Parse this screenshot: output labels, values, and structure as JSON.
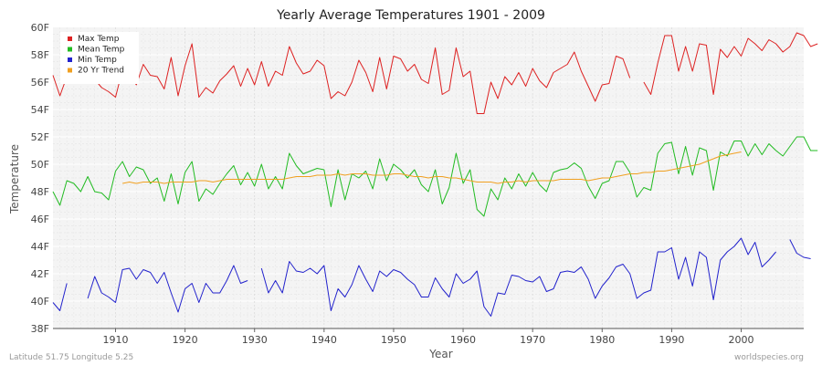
{
  "chart_data": {
    "type": "line",
    "title": "Yearly Average Temperatures 1901 - 2009",
    "xlabel": "Year",
    "ylabel": "Temperature",
    "xlim": [
      1901,
      2009
    ],
    "ylim": [
      38,
      60
    ],
    "x_ticks": [
      1910,
      1920,
      1930,
      1940,
      1950,
      1960,
      1970,
      1980,
      1990,
      2000
    ],
    "y_ticks": [
      38,
      40,
      42,
      44,
      46,
      48,
      50,
      52,
      54,
      56,
      58,
      60
    ],
    "y_tick_labels": [
      "38F",
      "40F",
      "42F",
      "44F",
      "46F",
      "48F",
      "50F",
      "52F",
      "54F",
      "56F",
      "58F",
      "60F"
    ],
    "grid": true,
    "legend_position": "top-left",
    "x_start": 1901,
    "series": [
      {
        "name": "Max Temp",
        "color": "#dd2222",
        "values": [
          56.5,
          55.0,
          56.4,
          56.0,
          null,
          55.9,
          56.2,
          55.6,
          55.3,
          54.9,
          56.9,
          56.5,
          55.8,
          57.3,
          56.5,
          56.4,
          55.5,
          57.8,
          55.0,
          57.2,
          58.8,
          54.9,
          55.6,
          55.2,
          56.1,
          56.6,
          57.2,
          55.7,
          57.0,
          55.8,
          57.5,
          55.7,
          56.8,
          56.5,
          58.6,
          57.4,
          56.6,
          56.8,
          57.6,
          57.2,
          54.8,
          55.3,
          55.0,
          56.0,
          57.6,
          56.7,
          55.3,
          57.8,
          55.5,
          57.9,
          57.7,
          56.8,
          57.3,
          56.2,
          55.9,
          58.5,
          55.1,
          55.4,
          58.5,
          56.4,
          56.8,
          53.7,
          53.7,
          56.0,
          54.8,
          56.4,
          55.8,
          56.7,
          55.7,
          57.0,
          56.1,
          55.6,
          56.7,
          57.0,
          57.3,
          58.2,
          56.8,
          55.7,
          54.6,
          55.8,
          55.9,
          57.9,
          57.7,
          56.3,
          null,
          56.0,
          55.1,
          57.4,
          59.4,
          59.4,
          56.8,
          58.6,
          56.8,
          58.8,
          58.7,
          55.1,
          58.4,
          57.8,
          58.6,
          57.9,
          59.2,
          58.8,
          58.3,
          59.1,
          58.8,
          58.2,
          58.6,
          59.6,
          59.4,
          58.6,
          58.8
        ]
      },
      {
        "name": "Mean Temp",
        "color": "#22bb22",
        "values": [
          48.0,
          47.0,
          48.8,
          48.6,
          48.0,
          49.1,
          48.0,
          47.9,
          47.4,
          49.5,
          50.2,
          49.1,
          49.8,
          49.6,
          48.6,
          49.0,
          47.3,
          49.3,
          47.1,
          49.4,
          50.2,
          47.3,
          48.2,
          47.8,
          48.6,
          49.3,
          49.9,
          48.5,
          49.4,
          48.4,
          50.0,
          48.2,
          49.1,
          48.2,
          50.8,
          49.9,
          49.3,
          49.5,
          49.7,
          49.6,
          46.9,
          49.6,
          47.4,
          49.3,
          49.0,
          49.5,
          48.2,
          50.4,
          48.8,
          50.0,
          49.6,
          49.0,
          49.6,
          48.5,
          48.0,
          49.6,
          47.1,
          48.3,
          50.8,
          48.6,
          49.6,
          46.7,
          46.2,
          48.2,
          47.4,
          49.0,
          48.2,
          49.3,
          48.4,
          49.4,
          48.5,
          48.0,
          49.4,
          49.6,
          49.7,
          50.1,
          49.7,
          48.4,
          47.5,
          48.6,
          48.8,
          50.2,
          50.2,
          49.4,
          47.6,
          48.3,
          48.1,
          50.8,
          51.5,
          51.6,
          49.3,
          51.3,
          49.2,
          51.2,
          51.0,
          48.1,
          50.9,
          50.6,
          51.7,
          51.7,
          50.6,
          51.5,
          50.7,
          51.5,
          51.0,
          50.6,
          51.3,
          52.0,
          52.0,
          51.0,
          51.0
        ]
      },
      {
        "name": "Min Temp",
        "color": "#2222cc",
        "values": [
          39.9,
          39.3,
          41.3,
          null,
          null,
          40.2,
          41.8,
          40.6,
          40.3,
          39.9,
          42.3,
          42.4,
          41.6,
          42.3,
          42.1,
          41.3,
          42.1,
          40.6,
          39.2,
          40.9,
          41.3,
          39.9,
          41.3,
          40.6,
          40.6,
          41.5,
          42.6,
          41.3,
          41.5,
          null,
          42.4,
          40.6,
          41.5,
          40.6,
          42.9,
          42.2,
          42.1,
          42.4,
          42.0,
          42.6,
          39.3,
          40.9,
          40.3,
          41.2,
          42.6,
          41.6,
          40.7,
          42.2,
          41.8,
          42.3,
          42.1,
          41.6,
          41.2,
          40.3,
          40.3,
          41.7,
          40.9,
          40.3,
          42.0,
          41.3,
          41.6,
          42.2,
          39.6,
          38.9,
          40.6,
          40.5,
          41.9,
          41.8,
          41.5,
          41.4,
          41.8,
          40.7,
          40.9,
          42.1,
          42.2,
          42.1,
          42.5,
          41.6,
          40.2,
          41.1,
          41.7,
          42.5,
          42.7,
          42.0,
          40.2,
          40.6,
          40.8,
          43.6,
          43.6,
          43.9,
          41.6,
          43.2,
          41.1,
          43.6,
          43.2,
          40.1,
          43.0,
          43.6,
          44.0,
          44.6,
          43.4,
          44.3,
          42.5,
          43.0,
          43.6,
          null,
          44.5,
          43.5,
          43.2,
          43.1
        ]
      },
      {
        "name": "20 Yr Trend",
        "color": "#f0a020",
        "values": [
          null,
          null,
          null,
          null,
          null,
          null,
          null,
          null,
          null,
          null,
          48.6,
          48.7,
          48.6,
          48.7,
          48.7,
          48.7,
          48.6,
          48.7,
          48.7,
          48.7,
          48.7,
          48.8,
          48.8,
          48.7,
          48.8,
          48.9,
          48.9,
          48.9,
          48.9,
          48.9,
          48.9,
          48.9,
          48.9,
          48.9,
          49.0,
          49.1,
          49.1,
          49.1,
          49.2,
          49.2,
          49.2,
          49.3,
          49.2,
          49.3,
          49.3,
          49.3,
          49.2,
          49.2,
          49.2,
          49.3,
          49.3,
          49.2,
          49.1,
          49.1,
          49.0,
          49.1,
          49.1,
          49.0,
          49.0,
          48.9,
          48.8,
          48.7,
          48.7,
          48.7,
          48.6,
          48.7,
          48.7,
          48.8,
          48.7,
          48.8,
          48.8,
          48.8,
          48.8,
          48.9,
          48.9,
          48.9,
          48.9,
          48.8,
          48.9,
          49.0,
          49.0,
          49.1,
          49.2,
          49.3,
          49.3,
          49.4,
          49.4,
          49.5,
          49.5,
          49.6,
          49.7,
          49.8,
          49.9,
          50.0,
          50.2,
          50.4,
          50.6,
          50.7,
          50.8,
          50.9,
          null,
          null,
          null,
          null,
          null,
          null,
          null,
          null,
          null,
          null,
          null
        ]
      }
    ]
  },
  "footer": {
    "left": "Latitude 51.75 Longitude 5.25",
    "right": "worldspecies.org"
  }
}
